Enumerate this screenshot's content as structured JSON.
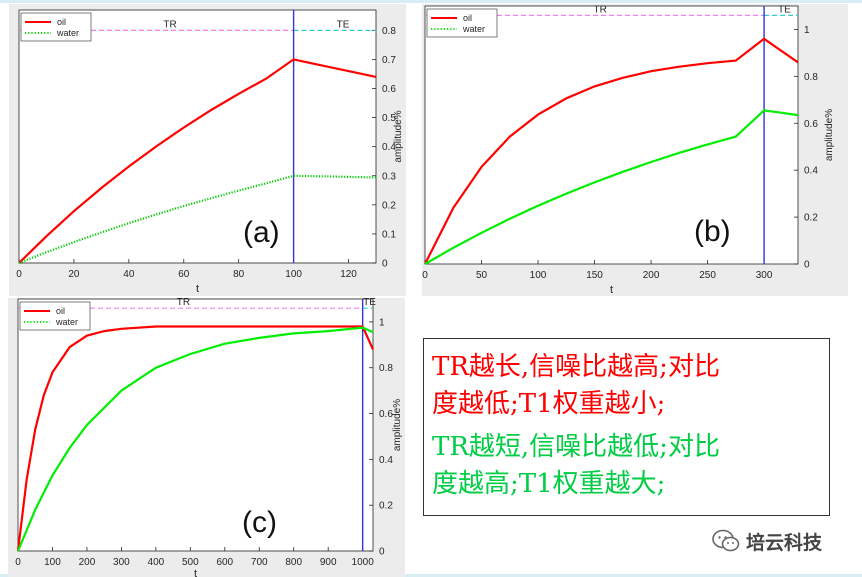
{
  "charts": [
    {
      "panel_label": "(a)",
      "chart_data": {
        "type": "line",
        "xlabel": "t",
        "ylabel": "amplitude%",
        "xlim": [
          0,
          130
        ],
        "ylim": [
          0,
          0.87
        ],
        "xticks": [
          0,
          20,
          40,
          60,
          80,
          100,
          120
        ],
        "yticks": [
          0,
          0.1,
          0.2,
          0.3,
          0.4,
          0.5,
          0.6,
          0.7,
          0.8
        ],
        "tick_labels_x": [
          "0",
          "20",
          "40",
          "60",
          "80",
          "100",
          "120"
        ],
        "tick_labels_y": [
          "0",
          "0.1",
          "0.2",
          "0.3",
          "0.4",
          "0.5",
          "0.6",
          "0.7",
          "0.8"
        ],
        "y_axis_side": "right",
        "legend": "top-left",
        "series": [
          {
            "name": "oil",
            "style": "solid",
            "color": "#ff0000",
            "x": [
              0,
              10,
              20,
              30,
              40,
              50,
              60,
              70,
              80,
              90,
              100,
              110,
              120,
              130
            ],
            "y": [
              0,
              0.092,
              0.178,
              0.258,
              0.332,
              0.401,
              0.466,
              0.526,
              0.582,
              0.634,
              0.7,
              0.68,
              0.66,
              0.64
            ]
          },
          {
            "name": "water",
            "style": "dotted",
            "color": "#00cc00",
            "x": [
              0,
              10,
              20,
              30,
              40,
              50,
              60,
              70,
              80,
              90,
              100,
              110,
              120,
              130
            ],
            "y": [
              0,
              0.037,
              0.072,
              0.105,
              0.137,
              0.167,
              0.196,
              0.223,
              0.249,
              0.274,
              0.3,
              0.298,
              0.296,
              0.294
            ]
          }
        ],
        "annotations": [
          {
            "text": "TR",
            "x": 55,
            "y": 0.8
          },
          {
            "text": "TE",
            "x": 118,
            "y": 0.8
          }
        ],
        "reference_lines": [
          {
            "orientation": "horizontal",
            "value": 0.8,
            "color": "#ee82ee"
          },
          {
            "orientation": "vertical",
            "value": 100,
            "color": "#3333dd"
          }
        ]
      }
    },
    {
      "panel_label": "(b)",
      "chart_data": {
        "type": "line",
        "xlabel": "t",
        "ylabel": "amplitude%",
        "xlim": [
          0,
          330
        ],
        "ylim": [
          0,
          1.1
        ],
        "xticks": [
          0,
          50,
          100,
          150,
          200,
          250,
          300
        ],
        "yticks": [
          0,
          0.2,
          0.4,
          0.6,
          0.8,
          1
        ],
        "tick_labels_x": [
          "0",
          "50",
          "100",
          "150",
          "200",
          "250",
          "300"
        ],
        "tick_labels_y": [
          "0",
          "0.2",
          "0.4",
          "0.6",
          "0.8",
          "1"
        ],
        "y_axis_side": "right",
        "legend": "top-left",
        "series": [
          {
            "name": "oil",
            "style": "solid",
            "color": "#ff0000",
            "x": [
              0,
              25,
              50,
              75,
              100,
              125,
              150,
              175,
              200,
              225,
              250,
              275,
              300,
              315,
              330
            ],
            "y": [
              0,
              0.239,
              0.414,
              0.543,
              0.637,
              0.706,
              0.757,
              0.794,
              0.822,
              0.841,
              0.856,
              0.867,
              0.96,
              0.91,
              0.86
            ]
          },
          {
            "name": "water",
            "style": "solid",
            "color": "#00ee00",
            "x": [
              0,
              25,
              50,
              75,
              100,
              125,
              150,
              175,
              200,
              225,
              250,
              275,
              300,
              315,
              330
            ],
            "y": [
              0,
              0.069,
              0.133,
              0.193,
              0.248,
              0.3,
              0.348,
              0.393,
              0.435,
              0.474,
              0.51,
              0.543,
              0.655,
              0.645,
              0.635
            ]
          }
        ],
        "annotations": [
          {
            "text": "TR",
            "x": 155,
            "y": 1.06
          },
          {
            "text": "TE",
            "x": 318,
            "y": 1.06
          }
        ],
        "reference_lines": [
          {
            "orientation": "horizontal",
            "value": 1.06,
            "color": "#ee82ee"
          },
          {
            "orientation": "vertical",
            "value": 300,
            "color": "#3333dd"
          }
        ]
      }
    },
    {
      "panel_label": "(c)",
      "chart_data": {
        "type": "line",
        "xlabel": "t",
        "ylabel": "amplitude%",
        "xlim": [
          0,
          1030
        ],
        "ylim": [
          0,
          1.1
        ],
        "xticks": [
          0,
          100,
          200,
          300,
          400,
          500,
          600,
          700,
          800,
          900,
          1000
        ],
        "yticks": [
          0,
          0.2,
          0.4,
          0.6,
          0.8,
          1
        ],
        "tick_labels_x": [
          "0",
          "100",
          "200",
          "300",
          "400",
          "500",
          "600",
          "700",
          "800",
          "900",
          "1000"
        ],
        "tick_labels_y": [
          "0",
          "0.2",
          "0.4",
          "0.6",
          "0.8",
          "1"
        ],
        "y_axis_side": "right",
        "legend": "top-left",
        "series": [
          {
            "name": "oil",
            "style": "solid",
            "color": "#ff0000",
            "x": [
              0,
              25,
              50,
              75,
              100,
              150,
              200,
              250,
              300,
              400,
              500,
              600,
              800,
              1000,
              1015,
              1030
            ],
            "y": [
              0,
              0.31,
              0.53,
              0.68,
              0.78,
              0.89,
              0.94,
              0.96,
              0.97,
              0.98,
              0.98,
              0.98,
              0.98,
              0.98,
              0.93,
              0.88
            ]
          },
          {
            "name": "water",
            "style": "solid",
            "color": "#00ee00",
            "x": [
              0,
              50,
              100,
              150,
              200,
              300,
              400,
              500,
              600,
              700,
              800,
              900,
              1000,
              1015,
              1030
            ],
            "y": [
              0,
              0.18,
              0.33,
              0.45,
              0.55,
              0.7,
              0.8,
              0.86,
              0.905,
              0.93,
              0.95,
              0.96,
              0.975,
              0.965,
              0.955
            ]
          }
        ],
        "annotations": [
          {
            "text": "TR",
            "x": 480,
            "y": 1.06
          },
          {
            "text": "TE",
            "x": 1020,
            "y": 1.06
          }
        ],
        "reference_lines": [
          {
            "orientation": "horizontal",
            "value": 1.06,
            "color": "#ee82ee"
          },
          {
            "orientation": "vertical",
            "value": 1000,
            "color": "#3333dd"
          }
        ]
      }
    }
  ],
  "note": {
    "red_text_line1": "TR越长,信噪比越高;对比",
    "red_text_line2": "度越低;T1权重越小;",
    "green_text_line1": "TR越短,信噪比越低;对比",
    "green_text_line2": "度越高;T1权重越大;",
    "red_color": "#ff0000",
    "green_color": "#00cc44"
  },
  "watermark": {
    "text": "培云科技",
    "icon": "wechat-icon"
  }
}
